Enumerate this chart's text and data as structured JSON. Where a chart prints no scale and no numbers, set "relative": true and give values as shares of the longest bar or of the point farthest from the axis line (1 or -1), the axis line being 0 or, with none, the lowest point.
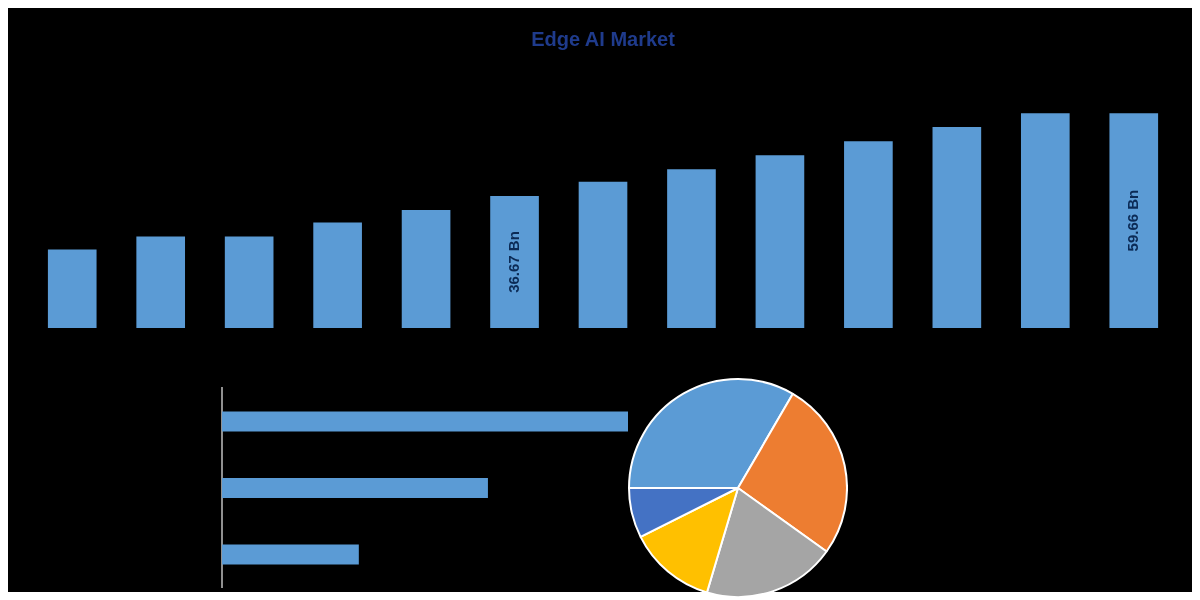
{
  "chart_data": [
    {
      "type": "bar",
      "title": "Edge AI Market",
      "categories": [
        null,
        null,
        null,
        null,
        null,
        null,
        null,
        null,
        null,
        null,
        null,
        null,
        null
      ],
      "values": [
        21.8,
        25.4,
        25.4,
        29.3,
        32.8,
        36.67,
        40.6,
        44.1,
        48.0,
        51.9,
        55.8,
        59.66,
        59.66
      ],
      "value_labels": [
        null,
        null,
        null,
        null,
        null,
        "36.67 Bn",
        null,
        null,
        null,
        null,
        null,
        null,
        "59.66 Bn"
      ],
      "color": "#5b9bd5",
      "tick_labels": false
    },
    {
      "type": "bar",
      "orientation": "horizontal",
      "relative": true,
      "categories": [
        null,
        null,
        null
      ],
      "values": [
        1,
        0.655,
        0.337
      ],
      "color": "#5b9bd5"
    },
    {
      "type": "pie",
      "categories": [
        null,
        null,
        null,
        null,
        null
      ],
      "values": [
        33.4,
        26.5,
        19.7,
        13,
        7.4
      ],
      "colors": [
        "#5b9bd5",
        "#ed7d31",
        "#a5a5a5",
        "#ffc000",
        "#4472c4"
      ]
    }
  ]
}
